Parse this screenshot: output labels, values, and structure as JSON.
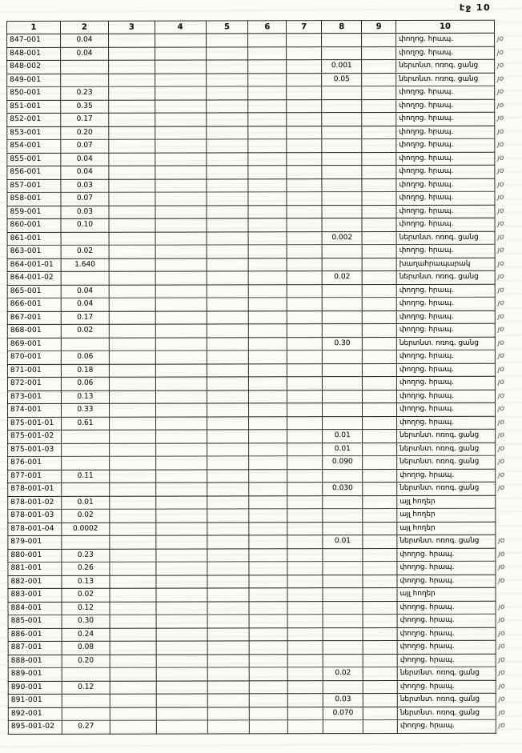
{
  "page": {
    "label": "էջ 10"
  },
  "table": {
    "headers": [
      "1",
      "2",
      "3",
      "4",
      "5",
      "6",
      "7",
      "8",
      "9",
      "10"
    ],
    "rows": [
      {
        "id": "847-001",
        "col2": "0.04",
        "col8": "",
        "col10": "փողոց. հրապ.",
        "mark": "յօ"
      },
      {
        "id": "848-001",
        "col2": "0.04",
        "col8": "",
        "col10": "փողոց. հրապ.",
        "mark": "յօ"
      },
      {
        "id": "848-002",
        "col2": "",
        "col8": "0.001",
        "col10": "ներտնտ. ոռոգ. ցանց",
        "mark": "յօ"
      },
      {
        "id": "849-001",
        "col2": "",
        "col8": "0.05",
        "col10": "ներտնտ. ոռոգ. ցանց",
        "mark": "յօ"
      },
      {
        "id": "850-001",
        "col2": "0.23",
        "col8": "",
        "col10": "փողոց. հրապ.",
        "mark": "յօ"
      },
      {
        "id": "851-001",
        "col2": "0.35",
        "col8": "",
        "col10": "փողոց. հրապ.",
        "mark": "յօ"
      },
      {
        "id": "852-001",
        "col2": "0.17",
        "col8": "",
        "col10": "փողոց. հրապ.",
        "mark": "յօ"
      },
      {
        "id": "853-001",
        "col2": "0.20",
        "col8": "",
        "col10": "փողոց. հրապ.",
        "mark": "յօ"
      },
      {
        "id": "854-001",
        "col2": "0.07",
        "col8": "",
        "col10": "փողոց. հրապ.",
        "mark": "յօ"
      },
      {
        "id": "855-001",
        "col2": "0.04",
        "col8": "",
        "col10": "փողոց. հրապ.",
        "mark": "յօ"
      },
      {
        "id": "856-001",
        "col2": "0.04",
        "col8": "",
        "col10": "փողոց. հրապ.",
        "mark": "յօ"
      },
      {
        "id": "857-001",
        "col2": "0.03",
        "col8": "",
        "col10": "փողոց. հրապ.",
        "mark": "յօ"
      },
      {
        "id": "858-001",
        "col2": "0.07",
        "col8": "",
        "col10": "փողոց. հրապ.",
        "mark": "յօ"
      },
      {
        "id": "859-001",
        "col2": "0.03",
        "col8": "",
        "col10": "փողոց. հրապ.",
        "mark": "յօ"
      },
      {
        "id": "860-001",
        "col2": "0.10",
        "col8": "",
        "col10": "փողոց. հրապ.",
        "mark": "յօ"
      },
      {
        "id": "861-001",
        "col2": "",
        "col8": "0.002",
        "col10": "ներտնտ. ոռոգ. ցանց",
        "mark": "յօ"
      },
      {
        "id": "863-001",
        "col2": "0.02",
        "col8": "",
        "col10": "փողոց. հրապ.",
        "mark": "յօ"
      },
      {
        "id": "864-001-01",
        "col2": "1.640",
        "col8": "",
        "col10": "խաղահրապարակ",
        "mark": "յօ"
      },
      {
        "id": "864-001-02",
        "col2": "",
        "col8": "0.02",
        "col10": "ներտնտ. ոռոգ. ցանց",
        "mark": "յօ"
      },
      {
        "id": "865-001",
        "col2": "0.04",
        "col8": "",
        "col10": "փողոց. հրապ.",
        "mark": "յօ"
      },
      {
        "id": "866-001",
        "col2": "0.04",
        "col8": "",
        "col10": "փողոց. հրապ.",
        "mark": "յօ"
      },
      {
        "id": "867-001",
        "col2": "0.17",
        "col8": "",
        "col10": "փողոց. հրապ.",
        "mark": "յօ"
      },
      {
        "id": "868-001",
        "col2": "0.02",
        "col8": "",
        "col10": "փողոց. հրապ.",
        "mark": "յօ"
      },
      {
        "id": "869-001",
        "col2": "",
        "col8": "0.30",
        "col10": "ներտնտ. ոռոգ. ցանց",
        "mark": "յօ"
      },
      {
        "id": "870-001",
        "col2": "0.06",
        "col8": "",
        "col10": "փողոց. հրապ.",
        "mark": "յօ"
      },
      {
        "id": "871-001",
        "col2": "0.18",
        "col8": "",
        "col10": "փողոց. հրապ.",
        "mark": "յօ"
      },
      {
        "id": "872-001",
        "col2": "0.06",
        "col8": "",
        "col10": "փողոց. հրապ.",
        "mark": "յօ"
      },
      {
        "id": "873-001",
        "col2": "0.13",
        "col8": "",
        "col10": "փողոց. հրապ.",
        "mark": "յօ"
      },
      {
        "id": "874-001",
        "col2": "0.33",
        "col8": "",
        "col10": "փողոց. հրապ.",
        "mark": "յօ"
      },
      {
        "id": "875-001-01",
        "col2": "0.61",
        "col8": "",
        "col10": "փողոց. հրապ.",
        "mark": "յօ"
      },
      {
        "id": "875-001-02",
        "col2": "",
        "col8": "0.01",
        "col10": "ներտնտ. ոռոգ. ցանց",
        "mark": "յօ"
      },
      {
        "id": "875-001-03",
        "col2": "",
        "col8": "0.01",
        "col10": "ներտնտ. ոռոգ. ցանց",
        "mark": "յօ"
      },
      {
        "id": "876-001",
        "col2": "",
        "col8": "0.090",
        "col10": "ներտնտ. ոռոգ. ցանց",
        "mark": "յօ"
      },
      {
        "id": "877-001",
        "col2": "0.11",
        "col8": "",
        "col10": "փողոց. հրապ.",
        "mark": "յօ"
      },
      {
        "id": "878-001-01",
        "col2": "",
        "col8": "0.030",
        "col10": "ներտնտ. ոռոգ. ցանց",
        "mark": "յօ"
      },
      {
        "id": "878-001-02",
        "col2": "0.01",
        "col8": "",
        "col10": "այլ հողեր",
        "mark": ""
      },
      {
        "id": "878-001-03",
        "col2": "0.02",
        "col8": "",
        "col10": "այլ հողեր",
        "mark": ""
      },
      {
        "id": "878-001-04",
        "col2": "0.0002",
        "col8": "",
        "col10": "այլ հողեր",
        "mark": ""
      },
      {
        "id": "879-001",
        "col2": "",
        "col8": "0.01",
        "col10": "ներտնտ. ոռոգ. ցանց",
        "mark": "յօ"
      },
      {
        "id": "880-001",
        "col2": "0.23",
        "col8": "",
        "col10": "փողոց. հրապ.",
        "mark": "յօ"
      },
      {
        "id": "881-001",
        "col2": "0.26",
        "col8": "",
        "col10": "փողոց. հրապ.",
        "mark": "յօ"
      },
      {
        "id": "882-001",
        "col2": "0.13",
        "col8": "",
        "col10": "փողոց. հրապ.",
        "mark": "յօ"
      },
      {
        "id": "883-001",
        "col2": "0.02",
        "col8": "",
        "col10": "այլ հողեր",
        "mark": ""
      },
      {
        "id": "884-001",
        "col2": "0.12",
        "col8": "",
        "col10": "փողոց. հրապ.",
        "mark": "յօ"
      },
      {
        "id": "885-001",
        "col2": "0.30",
        "col8": "",
        "col10": "փողոց. հրապ.",
        "mark": "յօ"
      },
      {
        "id": "886-001",
        "col2": "0.24",
        "col8": "",
        "col10": "փողոց. հրապ.",
        "mark": "յօ"
      },
      {
        "id": "887-001",
        "col2": "0.08",
        "col8": "",
        "col10": "փողոց. հրապ.",
        "mark": "յօ"
      },
      {
        "id": "888-001",
        "col2": "0.20",
        "col8": "",
        "col10": "փողոց. հրապ.",
        "mark": "յօ"
      },
      {
        "id": "889-001",
        "col2": "",
        "col8": "0.02",
        "col10": "ներտնտ. ոռոգ. ցանց",
        "mark": "յօ"
      },
      {
        "id": "890-001",
        "col2": "0.12",
        "col8": "",
        "col10": "փողոց. հրապ.",
        "mark": "յօ"
      },
      {
        "id": "891-001",
        "col2": "",
        "col8": "0.03",
        "col10": "ներտնտ. ոռոգ. ցանց",
        "mark": "յօ"
      },
      {
        "id": "892-001",
        "col2": "",
        "col8": "0.070",
        "col10": "ներտնտ. ոռոգ. ցանց",
        "mark": "յօ"
      },
      {
        "id": "895-001-02",
        "col2": "0.27",
        "col8": "",
        "col10": "փողոց. հրապ.",
        "mark": "յօ"
      }
    ]
  }
}
